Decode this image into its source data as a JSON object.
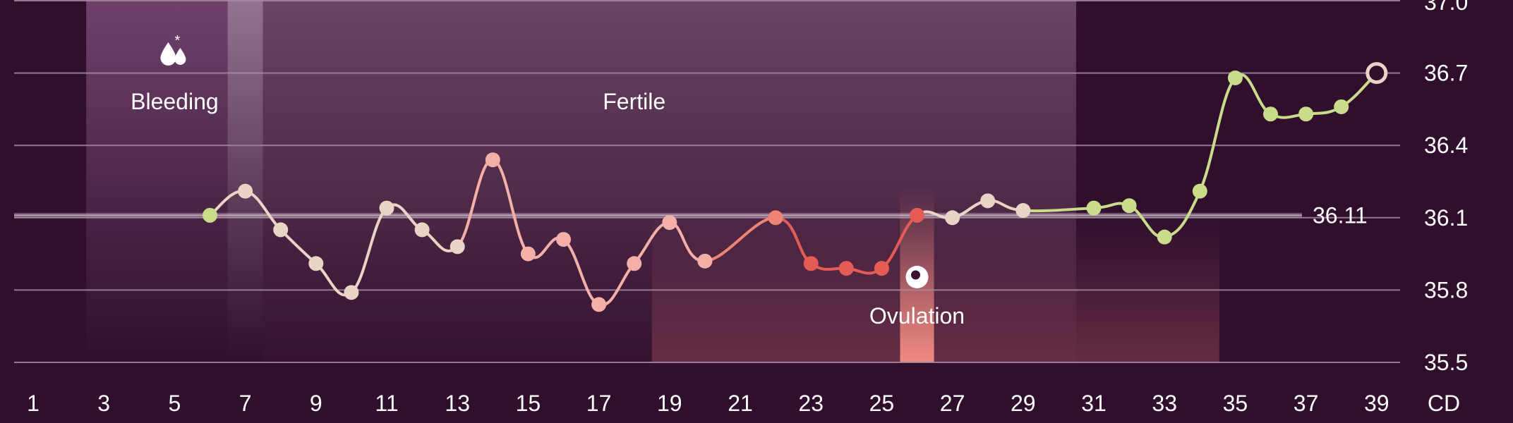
{
  "chart_data": {
    "type": "line",
    "title": "",
    "xlabel": "CD",
    "ylabel": "",
    "x_ticks": [
      1,
      3,
      5,
      7,
      9,
      11,
      13,
      15,
      17,
      19,
      21,
      23,
      25,
      27,
      29,
      31,
      33,
      35,
      37,
      39
    ],
    "y_ticks": [
      35.5,
      35.8,
      36.1,
      36.4,
      36.7,
      37.0
    ],
    "y_tick_labels": [
      "35.5",
      "35.8",
      "36.1",
      "36.4",
      "36.7",
      "37.0"
    ],
    "xlim": [
      1,
      39
    ],
    "ylim": [
      35.5,
      37.0
    ],
    "grid": true,
    "coverline": {
      "value": 36.11,
      "label": "36.11"
    },
    "phases": [
      {
        "name": "Bleeding",
        "label": "Bleeding",
        "start": 3,
        "end": 7,
        "icon": "blood-drops-icon"
      },
      {
        "name": "Fertile",
        "label": "Fertile",
        "start": 7,
        "end": 31
      },
      {
        "name": "Ovulation",
        "label": "Ovulation",
        "day": 26,
        "icon": "ovulation-icon"
      }
    ],
    "series": [
      {
        "points": [
          {
            "x": 6,
            "y": 36.11,
            "color": "#c9dc8a"
          },
          {
            "x": 7,
            "y": 36.21,
            "color": "#ead4c6"
          },
          {
            "x": 8,
            "y": 36.05,
            "color": "#ead4c6"
          },
          {
            "x": 9,
            "y": 35.91,
            "color": "#ead4c6"
          },
          {
            "x": 10,
            "y": 35.79,
            "color": "#ead4c6"
          },
          {
            "x": 11,
            "y": 36.14,
            "color": "#ead4c6"
          },
          {
            "x": 12,
            "y": 36.05,
            "color": "#ead4c6"
          },
          {
            "x": 13,
            "y": 35.98,
            "color": "#ead4c6"
          },
          {
            "x": 14,
            "y": 36.34,
            "color": "#f4b0a8"
          },
          {
            "x": 15,
            "y": 35.95,
            "color": "#f4b0a8"
          },
          {
            "x": 16,
            "y": 36.01,
            "color": "#f4b0a8"
          },
          {
            "x": 17,
            "y": 35.74,
            "color": "#f4b0a8"
          },
          {
            "x": 18,
            "y": 35.91,
            "color": "#f4b0a8"
          },
          {
            "x": 19,
            "y": 36.08,
            "color": "#f4b0a8"
          },
          {
            "x": 20,
            "y": 35.92,
            "color": "#f4b0a8"
          },
          {
            "x": 22,
            "y": 36.1,
            "color": "#ef8476"
          },
          {
            "x": 23,
            "y": 35.91,
            "color": "#e55b55"
          },
          {
            "x": 24,
            "y": 35.89,
            "color": "#e55b55"
          },
          {
            "x": 25,
            "y": 35.89,
            "color": "#e55b55"
          },
          {
            "x": 26,
            "y": 36.11,
            "color": "#e55b55"
          },
          {
            "x": 27,
            "y": 36.1,
            "color": "#ead4c6"
          },
          {
            "x": 28,
            "y": 36.17,
            "color": "#ead4c6"
          },
          {
            "x": 29,
            "y": 36.13,
            "color": "#ead4c6"
          },
          {
            "x": 31,
            "y": 36.14,
            "color": "#c9dc8a"
          },
          {
            "x": 32,
            "y": 36.15,
            "color": "#c9dc8a"
          },
          {
            "x": 33,
            "y": 36.02,
            "color": "#c9dc8a"
          },
          {
            "x": 34,
            "y": 36.21,
            "color": "#c9dc8a"
          },
          {
            "x": 35,
            "y": 36.68,
            "color": "#c9dc8a"
          },
          {
            "x": 36,
            "y": 36.53,
            "color": "#c9dc8a"
          },
          {
            "x": 37,
            "y": 36.53,
            "color": "#c9dc8a"
          },
          {
            "x": 38,
            "y": 36.56,
            "color": "#c9dc8a"
          },
          {
            "x": 39,
            "y": 36.7,
            "color": "#2f0f2c",
            "stroke": "#ead4c6",
            "open": true
          }
        ]
      }
    ],
    "colors": {
      "background": "#2f0f2c",
      "grid": "#a68aa5",
      "text": "#ffffff",
      "line_early": "#ead4c6",
      "line_mid": "#f4b0a8",
      "line_late": "#e55b55",
      "line_post": "#c9dc8a"
    }
  }
}
